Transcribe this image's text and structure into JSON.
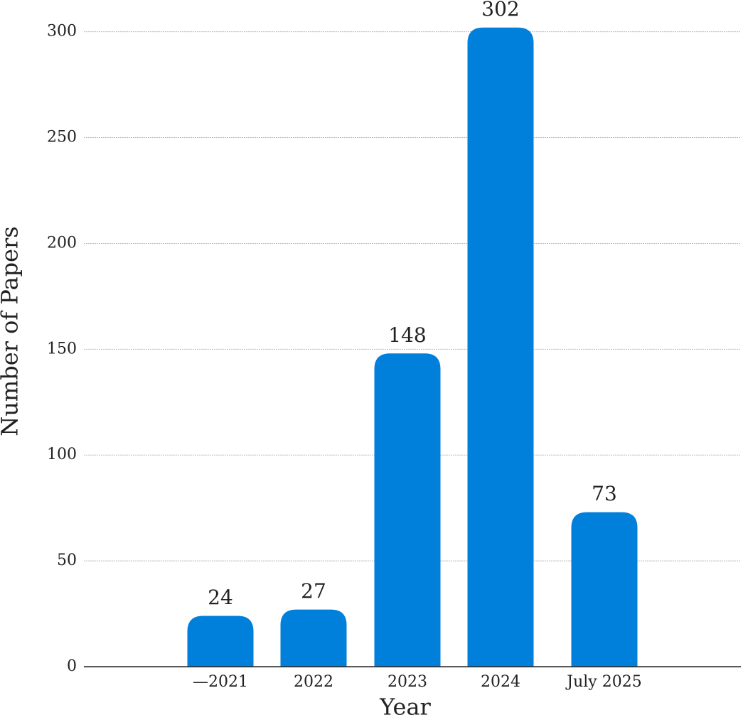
{
  "chart_data": {
    "type": "bar",
    "x_label": "Year",
    "y_label": "Number of Papers",
    "categories": [
      "—2021",
      "2022",
      "2023",
      "2024",
      "July 2025"
    ],
    "values": [
      24,
      27,
      148,
      302,
      73
    ],
    "color": "#007fdb",
    "ylim": [
      0,
      315
    ],
    "yticks": [
      0,
      50,
      100,
      150,
      200,
      250,
      300
    ],
    "grid": true
  }
}
